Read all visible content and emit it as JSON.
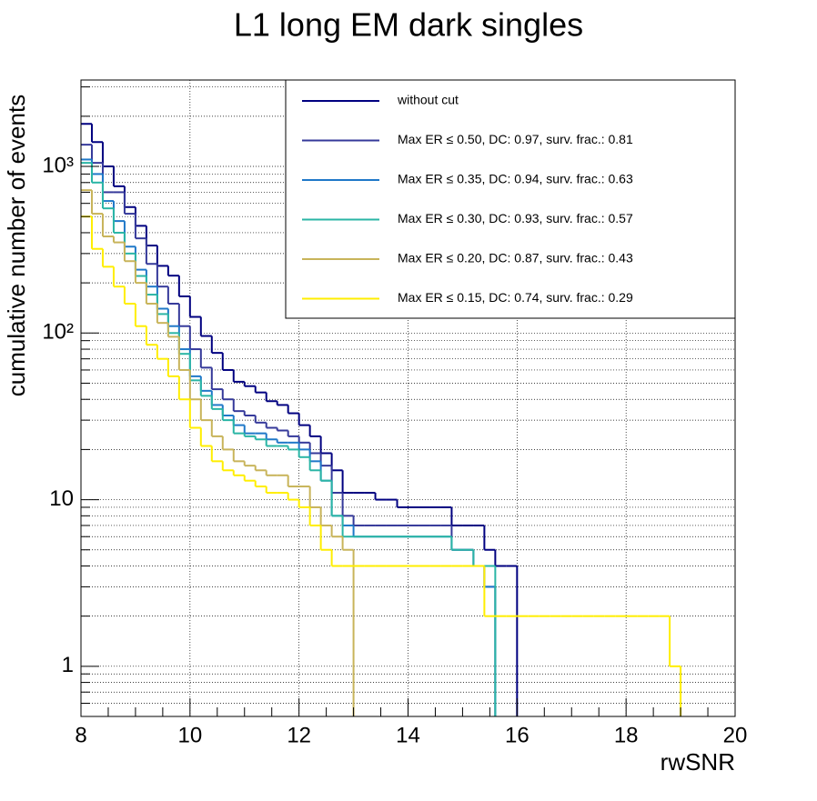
{
  "chart_data": {
    "type": "histogram",
    "title": "L1 long EM dark singles",
    "xlabel": "rwSNR",
    "ylabel": "cumulative number of events",
    "log_y": true,
    "grid": true,
    "xlim": [
      8,
      20
    ],
    "xticks": [
      8,
      10,
      12,
      14,
      16,
      18,
      20
    ],
    "ylim": [
      0.5,
      3300
    ],
    "yticks": [
      1,
      10,
      {
        "value": 100,
        "label": "10²"
      },
      {
        "value": 1000,
        "label": "10³"
      }
    ],
    "legend": "top-right",
    "bins": [
      8,
      8.2,
      8.4,
      8.6,
      8.8,
      9,
      9.2,
      9.4,
      9.6,
      9.8,
      10,
      10.2,
      10.4,
      10.6,
      10.8,
      11,
      11.2,
      11.4,
      11.6,
      11.8,
      12,
      12.2,
      12.4,
      12.6,
      12.8,
      13,
      13.2,
      13.4,
      13.6,
      13.8,
      14,
      14.2,
      14.4,
      14.6,
      14.8,
      15,
      15.2,
      15.4,
      15.6,
      15.8,
      16,
      16.2,
      16.4,
      16.6,
      16.8,
      17,
      17.2,
      17.4,
      17.6,
      17.8,
      18,
      18.2,
      18.4,
      18.6,
      18.8,
      19,
      19.2,
      19.4,
      19.6,
      19.8,
      20
    ],
    "series": [
      {
        "name": "without cut",
        "color": "#000080",
        "values": [
          1800,
          1400,
          1000,
          760,
          570,
          440,
          335,
          253,
          221,
          166,
          125,
          96,
          76,
          60,
          51,
          48,
          44,
          39,
          37,
          33,
          28,
          24,
          19,
          15,
          11,
          11,
          11,
          10,
          10,
          9,
          9,
          9,
          9,
          9,
          7,
          7,
          7,
          5,
          4,
          4,
          0,
          0,
          0,
          0,
          0,
          0,
          0,
          0,
          0,
          0,
          0,
          0,
          0,
          0,
          0,
          0,
          0,
          0,
          0,
          0
        ]
      },
      {
        "name": "Max ER ≤ 0.50, DC: 0.97, surv. frac.: 0.81",
        "color": "#35399a",
        "values": [
          1350,
          1050,
          700,
          700,
          520,
          370,
          260,
          190,
          150,
          110,
          80,
          62,
          46,
          40,
          34,
          32,
          29,
          27,
          26,
          24,
          22,
          19,
          16,
          11,
          8,
          7,
          7,
          7,
          7,
          7,
          7,
          7,
          7,
          7,
          5,
          5,
          4,
          3,
          0,
          0,
          0,
          0,
          0,
          0,
          0,
          0,
          0,
          0,
          0,
          0,
          0,
          0,
          0,
          0,
          0,
          0,
          0,
          0,
          0,
          0
        ]
      },
      {
        "name": "Max ER ≤ 0.35, DC: 0.94, surv. frac.: 0.63",
        "color": "#1f78c8",
        "values": [
          1100,
          900,
          620,
          470,
          330,
          240,
          190,
          140,
          110,
          80,
          55,
          45,
          37,
          32,
          28,
          25,
          25,
          23,
          22,
          22,
          20,
          17,
          13,
          8,
          7,
          6,
          6,
          6,
          6,
          6,
          6,
          6,
          6,
          6,
          5,
          5,
          4,
          3,
          0,
          0,
          0,
          0,
          0,
          0,
          0,
          0,
          0,
          0,
          0,
          0,
          0,
          0,
          0,
          0,
          0,
          0,
          0,
          0,
          0,
          0
        ]
      },
      {
        "name": "Max ER ≤ 0.30, DC: 0.93, surv. frac.: 0.57",
        "color": "#2ab5a5",
        "values": [
          1050,
          800,
          560,
          400,
          300,
          220,
          170,
          130,
          100,
          75,
          52,
          42,
          35,
          30,
          25,
          24,
          23,
          21,
          21,
          20,
          18,
          15,
          13,
          8,
          6,
          6,
          6,
          6,
          6,
          6,
          6,
          6,
          6,
          6,
          5,
          5,
          4,
          4,
          0,
          0,
          0,
          0,
          0,
          0,
          0,
          0,
          0,
          0,
          0,
          0,
          0,
          0,
          0,
          0,
          0,
          0,
          0,
          0,
          0,
          0
        ]
      },
      {
        "name": "Max ER ≤ 0.20, DC: 0.87, surv. frac.: 0.43",
        "color": "#c8b45a",
        "values": [
          720,
          520,
          380,
          350,
          270,
          200,
          150,
          115,
          95,
          60,
          40,
          30,
          24,
          20,
          17,
          16,
          15,
          14,
          14,
          12,
          12,
          9,
          7,
          6,
          5,
          0,
          0,
          0,
          0,
          0,
          0,
          0,
          0,
          0,
          0,
          0,
          0,
          0,
          0,
          0,
          0,
          0,
          0,
          0,
          0,
          0,
          0,
          0,
          0,
          0,
          0,
          0,
          0,
          0,
          0,
          0,
          0,
          0,
          0,
          0
        ]
      },
      {
        "name": "Max ER ≤ 0.15, DC: 0.74, surv. frac.: 0.29",
        "color": "#ffee00",
        "values": [
          500,
          320,
          250,
          190,
          150,
          110,
          85,
          70,
          55,
          40,
          27,
          21,
          17,
          15,
          14,
          13,
          12,
          11,
          11,
          10,
          9,
          7,
          5,
          4,
          4,
          4,
          4,
          4,
          4,
          4,
          4,
          4,
          4,
          4,
          4,
          4,
          4,
          2,
          2,
          2,
          2,
          2,
          2,
          2,
          2,
          2,
          2,
          2,
          2,
          2,
          2,
          2,
          2,
          2,
          1,
          0,
          0,
          0,
          0,
          0
        ]
      }
    ]
  }
}
